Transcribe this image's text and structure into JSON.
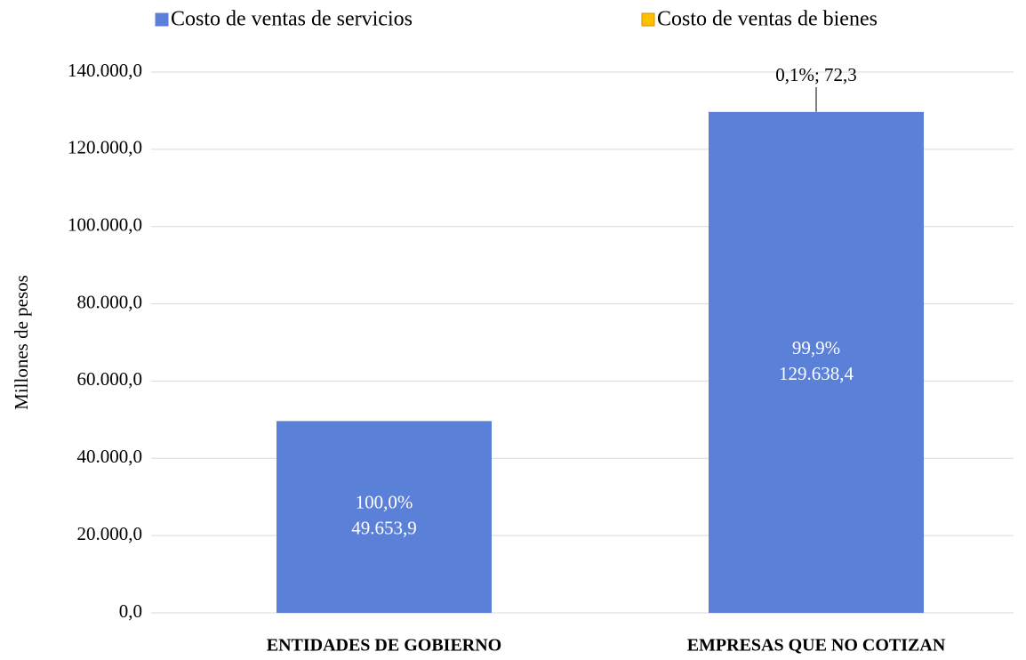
{
  "chart_data": {
    "type": "stacked_bar",
    "y_label": "Millones  de pesos",
    "categories": [
      "ENTIDADES DE GOBIERNO",
      "EMPRESAS QUE NO COTIZAN"
    ],
    "series": [
      {
        "name": "Costo de ventas de servicios",
        "color": "#5a80d8",
        "values": [
          49653.9,
          129638.4
        ],
        "value_labels": [
          [
            "100,0%",
            "49.653,9"
          ],
          [
            "99,9%",
            "129.638,4"
          ]
        ]
      },
      {
        "name": "Costo de ventas de bienes",
        "color": "#ffc000",
        "values": [
          null,
          72.3
        ],
        "value_labels": [
          null,
          [
            "0,1%; 72,3"
          ]
        ]
      }
    ],
    "ylim": [
      0,
      140000
    ],
    "yticks": [
      {
        "value": 0,
        "label": "0,0"
      },
      {
        "value": 20000,
        "label": "20.000,0"
      },
      {
        "value": 40000,
        "label": "40.000,0"
      },
      {
        "value": 60000,
        "label": "60.000,0"
      },
      {
        "value": 80000,
        "label": "80.000,0"
      },
      {
        "value": 100000,
        "label": "100.000,0"
      },
      {
        "value": 120000,
        "label": "120.000,0"
      },
      {
        "value": 140000,
        "label": "140.000,0"
      }
    ],
    "grid": true,
    "legend": "top"
  }
}
